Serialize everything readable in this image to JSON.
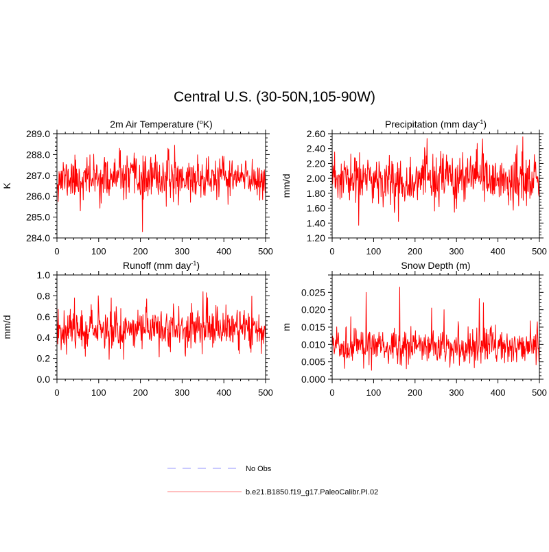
{
  "figure": {
    "title": "Central U.S. (30-50N,105-90W)",
    "series_color": "#ff0000",
    "obs_color": "#a9a9ff",
    "legend": {
      "placement": "bottom-center",
      "entries": [
        {
          "label": "No Obs",
          "style": "dashed",
          "color": "#a9a9ff"
        },
        {
          "label": "b.e21.B1850.f19_g17.PaleoCalibr.PI.02",
          "style": "solid",
          "color": "#ff9999"
        }
      ]
    }
  },
  "chart_data": [
    {
      "type": "line",
      "title_main": "2m Air Temperature (",
      "title_sup": "o",
      "title_end": "K)",
      "ylabel": "K",
      "xlim": [
        0,
        500
      ],
      "ylim": [
        284.0,
        289.0
      ],
      "xticks": [
        0,
        100,
        200,
        300,
        400,
        500
      ],
      "yticks": [
        284.0,
        285.0,
        286.0,
        287.0,
        288.0,
        289.0
      ],
      "ytick_labels": [
        "284.0",
        "285.0",
        "286.0",
        "287.0",
        "288.0",
        "289.0"
      ],
      "grid": false,
      "series": [
        {
          "mean": 286.85,
          "sd": 0.5,
          "seed": 11,
          "spikes": [
            [
              205,
              284.3
            ],
            [
              282,
              288.45
            ],
            [
              150,
              288.3
            ],
            [
              56,
              285.3
            ]
          ]
        }
      ]
    },
    {
      "type": "line",
      "title_main": "Precipitation (mm day",
      "title_sup": "-1",
      "title_end": ")",
      "ylabel": "mm/d",
      "xlim": [
        0,
        500
      ],
      "ylim": [
        1.2,
        2.6
      ],
      "xticks": [
        0,
        100,
        200,
        300,
        400,
        500
      ],
      "yticks": [
        1.2,
        1.4,
        1.6,
        1.8,
        2.0,
        2.2,
        2.4,
        2.6
      ],
      "ytick_labels": [
        "1.20",
        "1.40",
        "1.60",
        "1.80",
        "2.00",
        "2.20",
        "2.40",
        "2.60"
      ],
      "grid": false,
      "series": [
        {
          "mean": 1.98,
          "sd": 0.17,
          "seed": 23,
          "spikes": [
            [
              363,
              2.53
            ],
            [
              64,
              1.37
            ],
            [
              350,
              2.47
            ],
            [
              160,
              1.42
            ]
          ]
        }
      ]
    },
    {
      "type": "line",
      "title_main": "Runoff (mm day",
      "title_sup": "-1",
      "title_end": ")",
      "ylabel": "mm/d",
      "xlim": [
        0,
        500
      ],
      "ylim": [
        0.0,
        1.0
      ],
      "xticks": [
        0,
        100,
        200,
        300,
        400,
        500
      ],
      "yticks": [
        0.0,
        0.2,
        0.4,
        0.6,
        0.8,
        1.0
      ],
      "ytick_labels": [
        "0.0",
        "0.2",
        "0.4",
        "0.6",
        "0.8",
        "1.0"
      ],
      "grid": false,
      "series": [
        {
          "mean": 0.49,
          "sd": 0.1,
          "seed": 37,
          "spikes": [
            [
              350,
              0.84
            ],
            [
              358,
              0.83
            ],
            [
              125,
              0.19
            ],
            [
              160,
              0.19
            ],
            [
              130,
              0.78
            ]
          ]
        }
      ]
    },
    {
      "type": "line",
      "title_main": "Snow Depth (m)",
      "title_sup": "",
      "title_end": "",
      "ylabel": "m",
      "xlim": [
        0,
        500
      ],
      "ylim": [
        0.0,
        0.03
      ],
      "xticks": [
        0,
        100,
        200,
        300,
        400,
        500
      ],
      "yticks": [
        0.0,
        0.005,
        0.01,
        0.015,
        0.02,
        0.025
      ],
      "ytick_labels": [
        "0.000",
        "0.005",
        "0.010",
        "0.015",
        "0.020",
        "0.025"
      ],
      "grid": false,
      "series": [
        {
          "mean": 0.0085,
          "sd": 0.0025,
          "seed": 51,
          "spikes": [
            [
              82,
              0.025
            ],
            [
              163,
              0.0265
            ],
            [
              240,
              0.0205
            ],
            [
              355,
              0.0232
            ],
            [
              365,
              0.022
            ],
            [
              270,
              0.02
            ]
          ]
        }
      ]
    }
  ]
}
